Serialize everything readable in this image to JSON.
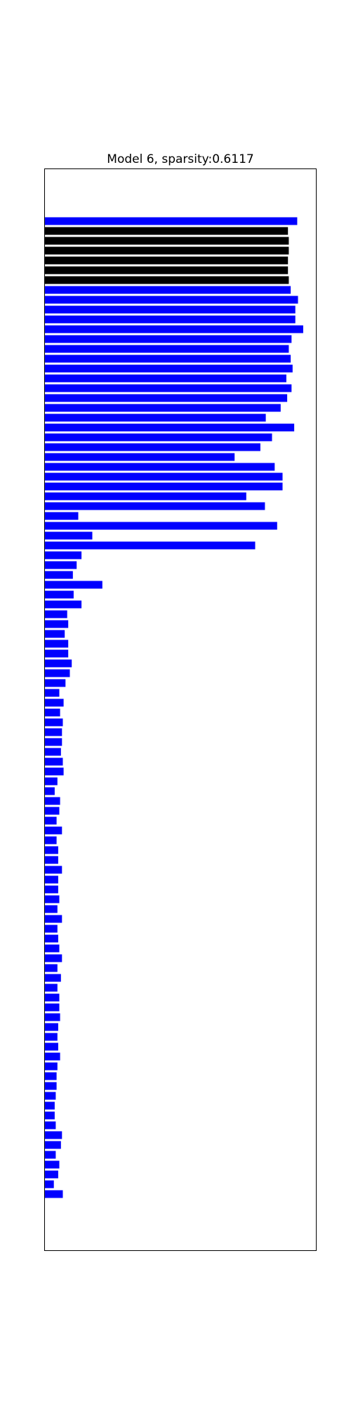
{
  "chart_data": {
    "type": "bar",
    "orientation": "horizontal",
    "title": "Model 6, sparsity:0.6117",
    "xlabel": "",
    "ylabel": "",
    "grid": false,
    "axis_ticks": false,
    "xlim": [
      0,
      1
    ],
    "colors": {
      "default": "#0000ff",
      "highlight": "#000000"
    },
    "values": [
      0.931,
      0.897,
      0.9,
      0.9,
      0.897,
      0.897,
      0.9,
      0.907,
      0.934,
      0.924,
      0.924,
      0.953,
      0.91,
      0.9,
      0.907,
      0.914,
      0.891,
      0.91,
      0.894,
      0.87,
      0.815,
      0.92,
      0.838,
      0.795,
      0.7,
      0.848,
      0.877,
      0.877,
      0.743,
      0.812,
      0.123,
      0.857,
      0.175,
      0.776,
      0.135,
      0.117,
      0.103,
      0.212,
      0.106,
      0.135,
      0.082,
      0.086,
      0.073,
      0.086,
      0.086,
      0.099,
      0.092,
      0.076,
      0.053,
      0.069,
      0.056,
      0.066,
      0.063,
      0.063,
      0.059,
      0.066,
      0.069,
      0.046,
      0.036,
      0.056,
      0.053,
      0.043,
      0.063,
      0.043,
      0.049,
      0.049,
      0.063,
      0.049,
      0.049,
      0.053,
      0.046,
      0.063,
      0.046,
      0.049,
      0.053,
      0.063,
      0.046,
      0.059,
      0.046,
      0.053,
      0.053,
      0.056,
      0.049,
      0.046,
      0.049,
      0.056,
      0.046,
      0.043,
      0.043,
      0.04,
      0.036,
      0.036,
      0.04,
      0.063,
      0.059,
      0.04,
      0.053,
      0.049,
      0.033,
      0.066
    ],
    "highlighted_indices": [
      1,
      2,
      3,
      4,
      5,
      6
    ]
  }
}
